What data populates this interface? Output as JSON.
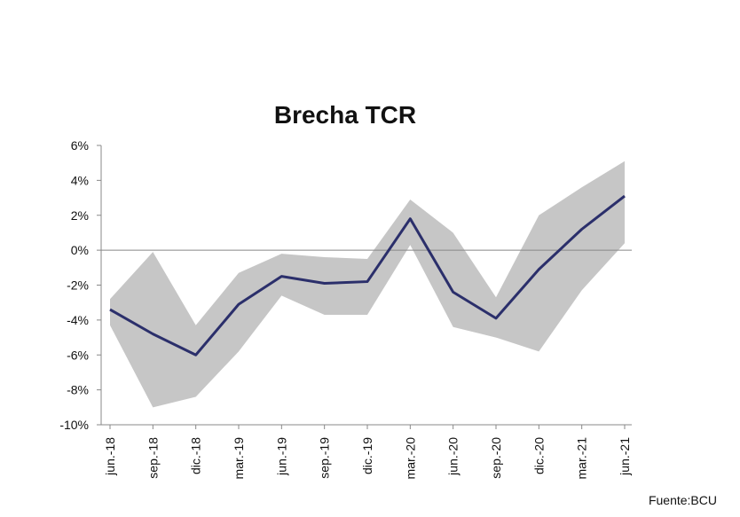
{
  "chart_data": {
    "type": "area",
    "title": "Brecha TCR",
    "xlabel": "",
    "ylabel": "",
    "categories": [
      "jun.-18",
      "sep.-18",
      "dic.-18",
      "mar.-19",
      "jun.-19",
      "sep.-19",
      "dic.-19",
      "mar.-20",
      "jun.-20",
      "sep.-20",
      "dic.-20",
      "mar.-21",
      "jun.-21"
    ],
    "series": [
      {
        "values": [
          -3.4,
          -4.8,
          -6.0,
          -3.1,
          -1.5,
          -1.9,
          -1.8,
          1.8,
          -2.4,
          -3.9,
          -1.1,
          1.2,
          3.1
        ]
      }
    ],
    "band": {
      "upper": [
        -2.8,
        -0.1,
        -4.3,
        -1.3,
        -0.2,
        -0.4,
        -0.5,
        2.9,
        1.0,
        -2.7,
        2.0,
        3.6,
        5.1
      ],
      "lower": [
        -4.3,
        -9.0,
        -8.4,
        -5.8,
        -2.6,
        -3.7,
        -3.7,
        0.3,
        -4.4,
        -5.0,
        -5.8,
        -2.3,
        0.4
      ]
    },
    "yticks": [
      "6%",
      "4%",
      "2%",
      "0%",
      "-2%",
      "-4%",
      "-6%",
      "-8%",
      "-10%"
    ],
    "ylim": [
      -10,
      6
    ],
    "grid": false,
    "colors": {
      "line": "#2b2f6b",
      "band": "#c6c6c6",
      "axis": "#888888"
    }
  },
  "source": "Fuente:BCU"
}
